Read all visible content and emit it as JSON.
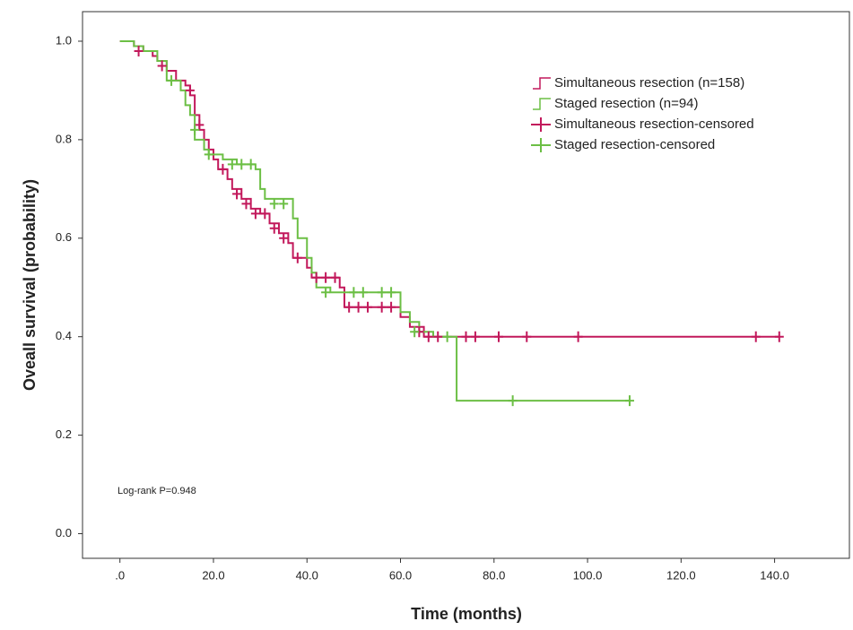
{
  "chart_data": {
    "type": "step",
    "x_label": "Time (months)",
    "y_label": "Oveall survival (probability)",
    "annotation": "Log-rank P=0.948",
    "xlim": [
      -8,
      156
    ],
    "ylim": [
      -0.05,
      1.06
    ],
    "xticks": [
      {
        "value": 0,
        "label": ".0"
      },
      {
        "value": 20,
        "label": "20.0"
      },
      {
        "value": 40,
        "label": "40.0"
      },
      {
        "value": 60,
        "label": "60.0"
      },
      {
        "value": 80,
        "label": "80.0"
      },
      {
        "value": 100,
        "label": "100.0"
      },
      {
        "value": 120,
        "label": "120.0"
      },
      {
        "value": 140,
        "label": "140.0"
      }
    ],
    "yticks": [
      {
        "value": 0,
        "label": "0.0"
      },
      0.2,
      0.4,
      0.6,
      0.8,
      {
        "value": 1,
        "label": "1.0"
      }
    ],
    "legend": "upper right",
    "series": [
      {
        "name": "Simultaneous resection (n=158)",
        "kind": "line",
        "color": "#c2185b",
        "x": [
          0,
          3,
          5,
          7,
          8,
          10,
          12,
          14,
          15,
          16,
          17,
          18,
          19,
          20,
          21,
          23,
          24,
          26,
          28,
          30,
          32,
          34,
          36,
          37,
          40,
          41,
          47,
          48,
          60,
          62,
          65,
          141
        ],
        "values": [
          1.0,
          0.99,
          0.98,
          0.97,
          0.96,
          0.94,
          0.92,
          0.91,
          0.89,
          0.85,
          0.82,
          0.8,
          0.78,
          0.76,
          0.74,
          0.72,
          0.7,
          0.68,
          0.66,
          0.65,
          0.63,
          0.61,
          0.59,
          0.56,
          0.54,
          0.52,
          0.5,
          0.46,
          0.44,
          0.42,
          0.4,
          0.4
        ]
      },
      {
        "name": "Staged resection (n=94)",
        "kind": "line",
        "color": "#6cbf45",
        "x": [
          0,
          3,
          5,
          8,
          10,
          13,
          14,
          15,
          16,
          18,
          19,
          22,
          25,
          29,
          30,
          31,
          37,
          38,
          40,
          41,
          42,
          45,
          60,
          62,
          64,
          67,
          72,
          109
        ],
        "values": [
          1.0,
          0.99,
          0.98,
          0.96,
          0.92,
          0.9,
          0.87,
          0.85,
          0.8,
          0.78,
          0.77,
          0.76,
          0.75,
          0.74,
          0.7,
          0.68,
          0.64,
          0.6,
          0.56,
          0.53,
          0.5,
          0.49,
          0.45,
          0.43,
          0.41,
          0.4,
          0.27,
          0.27
        ]
      },
      {
        "name": "Simultaneous resection-censored",
        "kind": "censor",
        "color": "#c2185b",
        "x": [
          4,
          9,
          15,
          17,
          22,
          25,
          27,
          29,
          31,
          33,
          35,
          38,
          42,
          44,
          46,
          49,
          51,
          53,
          56,
          58,
          64,
          66,
          68,
          74,
          76,
          81,
          87,
          98,
          136,
          141
        ],
        "values": [
          0.98,
          0.95,
          0.9,
          0.83,
          0.74,
          0.69,
          0.67,
          0.65,
          0.65,
          0.62,
          0.6,
          0.56,
          0.52,
          0.52,
          0.52,
          0.46,
          0.46,
          0.46,
          0.46,
          0.46,
          0.41,
          0.4,
          0.4,
          0.4,
          0.4,
          0.4,
          0.4,
          0.4,
          0.4,
          0.4
        ]
      },
      {
        "name": "Staged resection-censored",
        "kind": "censor",
        "color": "#6cbf45",
        "x": [
          11,
          16,
          19,
          24,
          26,
          28,
          33,
          35,
          44,
          50,
          52,
          56,
          58,
          63,
          70,
          84,
          109
        ],
        "values": [
          0.92,
          0.82,
          0.77,
          0.75,
          0.75,
          0.75,
          0.67,
          0.67,
          0.49,
          0.49,
          0.49,
          0.49,
          0.49,
          0.41,
          0.4,
          0.27,
          0.27
        ]
      }
    ]
  }
}
